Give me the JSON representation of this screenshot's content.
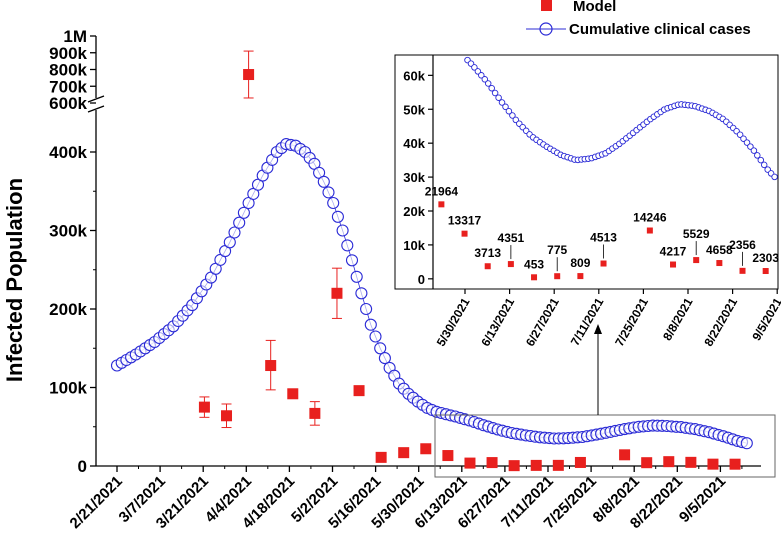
{
  "chart_data": {
    "type": "scatter",
    "ylabel": "Infected Population",
    "colors": {
      "model": "#e8201e",
      "cases": "#2b2bd6",
      "axis": "#000000"
    },
    "legend": {
      "position": "top-right",
      "model": "Model",
      "cases": "Cumulative clinical cases"
    },
    "ylim_lower": [
      0,
      450000
    ],
    "ylim_upper": [
      600000,
      1000000
    ],
    "yticks_lower": [
      {
        "v": 0,
        "label": "0"
      },
      {
        "v": 100000,
        "label": "100k"
      },
      {
        "v": 200000,
        "label": "200k"
      },
      {
        "v": 300000,
        "label": "300k"
      },
      {
        "v": 400000,
        "label": "400k"
      }
    ],
    "yticks_upper": [
      {
        "v": 600000,
        "label": "600k"
      },
      {
        "v": 700000,
        "label": "700k"
      },
      {
        "v": 800000,
        "label": "800k"
      },
      {
        "v": 900000,
        "label": "900k"
      },
      {
        "v": 1000000,
        "label": "1M"
      }
    ],
    "xticks": [
      "2/21/2021",
      "3/7/2021",
      "3/21/2021",
      "4/4/2021",
      "4/18/2021",
      "5/2/2021",
      "5/16/2021",
      "5/30/2021",
      "6/13/2021",
      "6/27/2021",
      "7/11/2021",
      "7/25/2021",
      "8/8/2021",
      "8/22/2021",
      "9/5/2021"
    ],
    "model_points": [
      {
        "d": 18.6,
        "v": 75000,
        "lo": 62000,
        "hi": 88000
      },
      {
        "d": 23.3,
        "v": 64000,
        "lo": 49000,
        "hi": 79000
      },
      {
        "d": 28.0,
        "v": 770000,
        "lo": 630000,
        "hi": 910000
      },
      {
        "d": 32.7,
        "v": 128000,
        "lo": 97000,
        "hi": 160000
      },
      {
        "d": 37.4,
        "v": 92000,
        "lo": 86000,
        "hi": 98000
      },
      {
        "d": 42.1,
        "v": 67000,
        "lo": 52000,
        "hi": 82000
      },
      {
        "d": 46.8,
        "v": 220000,
        "lo": 188000,
        "hi": 252000
      },
      {
        "d": 51.5,
        "v": 96000
      },
      {
        "d": 56.2,
        "v": 11000
      },
      {
        "d": 61.0,
        "v": 17000
      },
      {
        "d": 65.7,
        "v": 21964
      },
      {
        "d": 70.4,
        "v": 13317
      },
      {
        "d": 75.1,
        "v": 3713
      },
      {
        "d": 79.8,
        "v": 4351
      },
      {
        "d": 84.5,
        "v": 453
      },
      {
        "d": 89.2,
        "v": 775
      },
      {
        "d": 93.9,
        "v": 809
      },
      {
        "d": 98.6,
        "v": 4513
      },
      {
        "d": 108.0,
        "v": 14246
      },
      {
        "d": 112.7,
        "v": 4217
      },
      {
        "d": 117.4,
        "v": 5529
      },
      {
        "d": 122.1,
        "v": 4658
      },
      {
        "d": 126.8,
        "v": 2356
      },
      {
        "d": 131.5,
        "v": 2303
      }
    ],
    "cases_curve": [
      [
        0,
        128000
      ],
      [
        4,
        142000
      ],
      [
        8,
        158000
      ],
      [
        12,
        178000
      ],
      [
        16,
        205000
      ],
      [
        20,
        240000
      ],
      [
        24,
        285000
      ],
      [
        28,
        335000
      ],
      [
        31,
        370000
      ],
      [
        34,
        400000
      ],
      [
        36,
        410000
      ],
      [
        38,
        408000
      ],
      [
        40,
        400000
      ],
      [
        42,
        385000
      ],
      [
        44,
        362000
      ],
      [
        46,
        335000
      ],
      [
        48,
        300000
      ],
      [
        50,
        262000
      ],
      [
        52,
        220000
      ],
      [
        54,
        180000
      ],
      [
        56,
        150000
      ],
      [
        58,
        125000
      ],
      [
        60,
        105000
      ],
      [
        62,
        92000
      ],
      [
        64,
        82000
      ],
      [
        66,
        74000
      ],
      [
        68,
        69000
      ],
      [
        70,
        66000
      ],
      [
        72,
        63000
      ],
      [
        75,
        58000
      ],
      [
        78,
        52000
      ],
      [
        81,
        46500
      ],
      [
        84,
        42000
      ],
      [
        87,
        39000
      ],
      [
        90,
        36500
      ],
      [
        93,
        35000
      ],
      [
        96,
        35500
      ],
      [
        99,
        37000
      ],
      [
        102,
        40000
      ],
      [
        105,
        43500
      ],
      [
        108,
        47000
      ],
      [
        111,
        50000
      ],
      [
        114,
        51500
      ],
      [
        117,
        51000
      ],
      [
        120,
        49500
      ],
      [
        123,
        47000
      ],
      [
        126,
        43000
      ],
      [
        129,
        38000
      ],
      [
        132,
        32000
      ],
      [
        134,
        29000
      ]
    ],
    "inset": {
      "xticks": [
        "5/30/2021",
        "6/13/2021",
        "6/27/2021",
        "7/11/2021",
        "7/25/2021",
        "8/8/2021",
        "8/22/2021",
        "9/5/2021"
      ],
      "yticks": [
        {
          "v": 0,
          "label": "0"
        },
        {
          "v": 10000,
          "label": "10k"
        },
        {
          "v": 20000,
          "label": "20k"
        },
        {
          "v": 30000,
          "label": "30k"
        },
        {
          "v": 40000,
          "label": "40k"
        },
        {
          "v": 50000,
          "label": "50k"
        },
        {
          "v": 60000,
          "label": "60k"
        }
      ],
      "ylim": [
        -3000,
        66000
      ],
      "xlim": [
        64,
        134
      ],
      "labels": [
        {
          "text": "21964",
          "d": 65.7,
          "v": 21964,
          "pos": "above"
        },
        {
          "text": "13317",
          "d": 70.4,
          "v": 13317,
          "pos": "above"
        },
        {
          "text": "3713",
          "d": 75.1,
          "v": 3713,
          "pos": "above"
        },
        {
          "text": "4351",
          "d": 79.8,
          "v": 4351,
          "pos": "high"
        },
        {
          "text": "453",
          "d": 84.5,
          "v": 453,
          "pos": "above"
        },
        {
          "text": "775",
          "d": 89.2,
          "v": 775,
          "pos": "high"
        },
        {
          "text": "809",
          "d": 93.9,
          "v": 809,
          "pos": "above"
        },
        {
          "text": "4513",
          "d": 98.6,
          "v": 4513,
          "pos": "high"
        },
        {
          "text": "14246",
          "d": 108.0,
          "v": 14246,
          "pos": "above"
        },
        {
          "text": "4217",
          "d": 112.7,
          "v": 4217,
          "pos": "above"
        },
        {
          "text": "5529",
          "d": 117.4,
          "v": 5529,
          "pos": "high"
        },
        {
          "text": "4658",
          "d": 122.1,
          "v": 4658,
          "pos": "above"
        },
        {
          "text": "2356",
          "d": 126.8,
          "v": 2356,
          "pos": "high"
        },
        {
          "text": "2303",
          "d": 131.5,
          "v": 2303,
          "pos": "above"
        }
      ]
    }
  }
}
